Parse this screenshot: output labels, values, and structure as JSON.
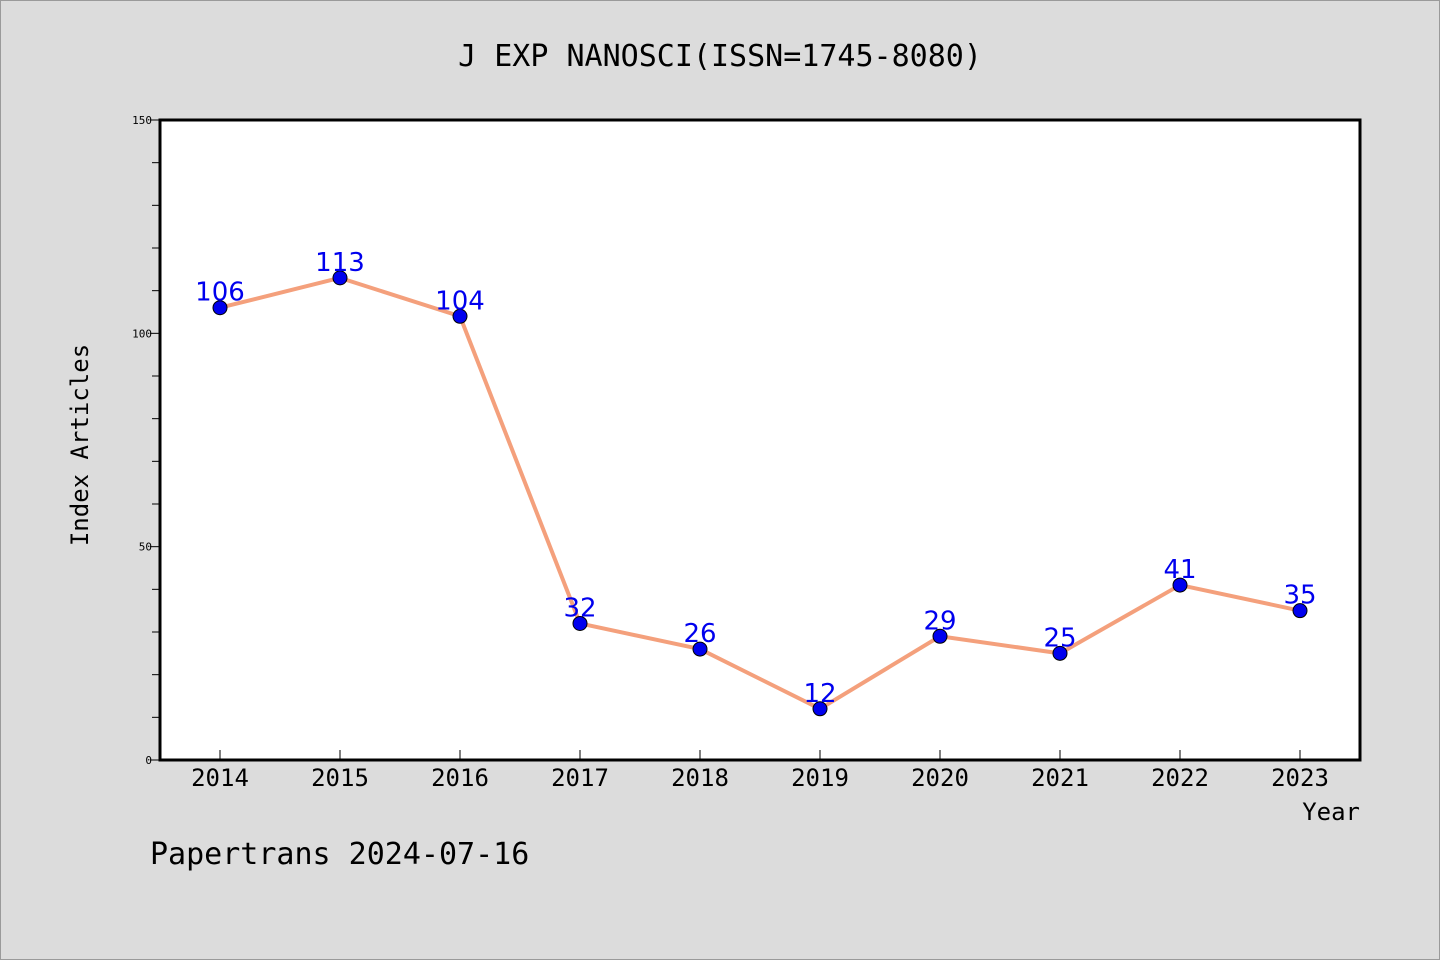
{
  "chart_data": {
    "type": "line",
    "title": "J EXP NANOSCI(ISSN=1745-8080)",
    "xlabel": "Year",
    "ylabel": "Index Articles",
    "categories": [
      "2014",
      "2015",
      "2016",
      "2017",
      "2018",
      "2019",
      "2020",
      "2021",
      "2022",
      "2023"
    ],
    "series": [
      {
        "values": [
          106,
          113,
          104,
          32,
          26,
          12,
          29,
          25,
          41,
          35
        ]
      }
    ],
    "ylim": [
      0,
      150
    ],
    "yticks": [
      0,
      50,
      100,
      150
    ],
    "grid": false,
    "line_color": "#f4a07c",
    "marker_color": "#0000ee",
    "label_color": "#0000ee"
  },
  "footer": "Papertrans 2024-07-16"
}
